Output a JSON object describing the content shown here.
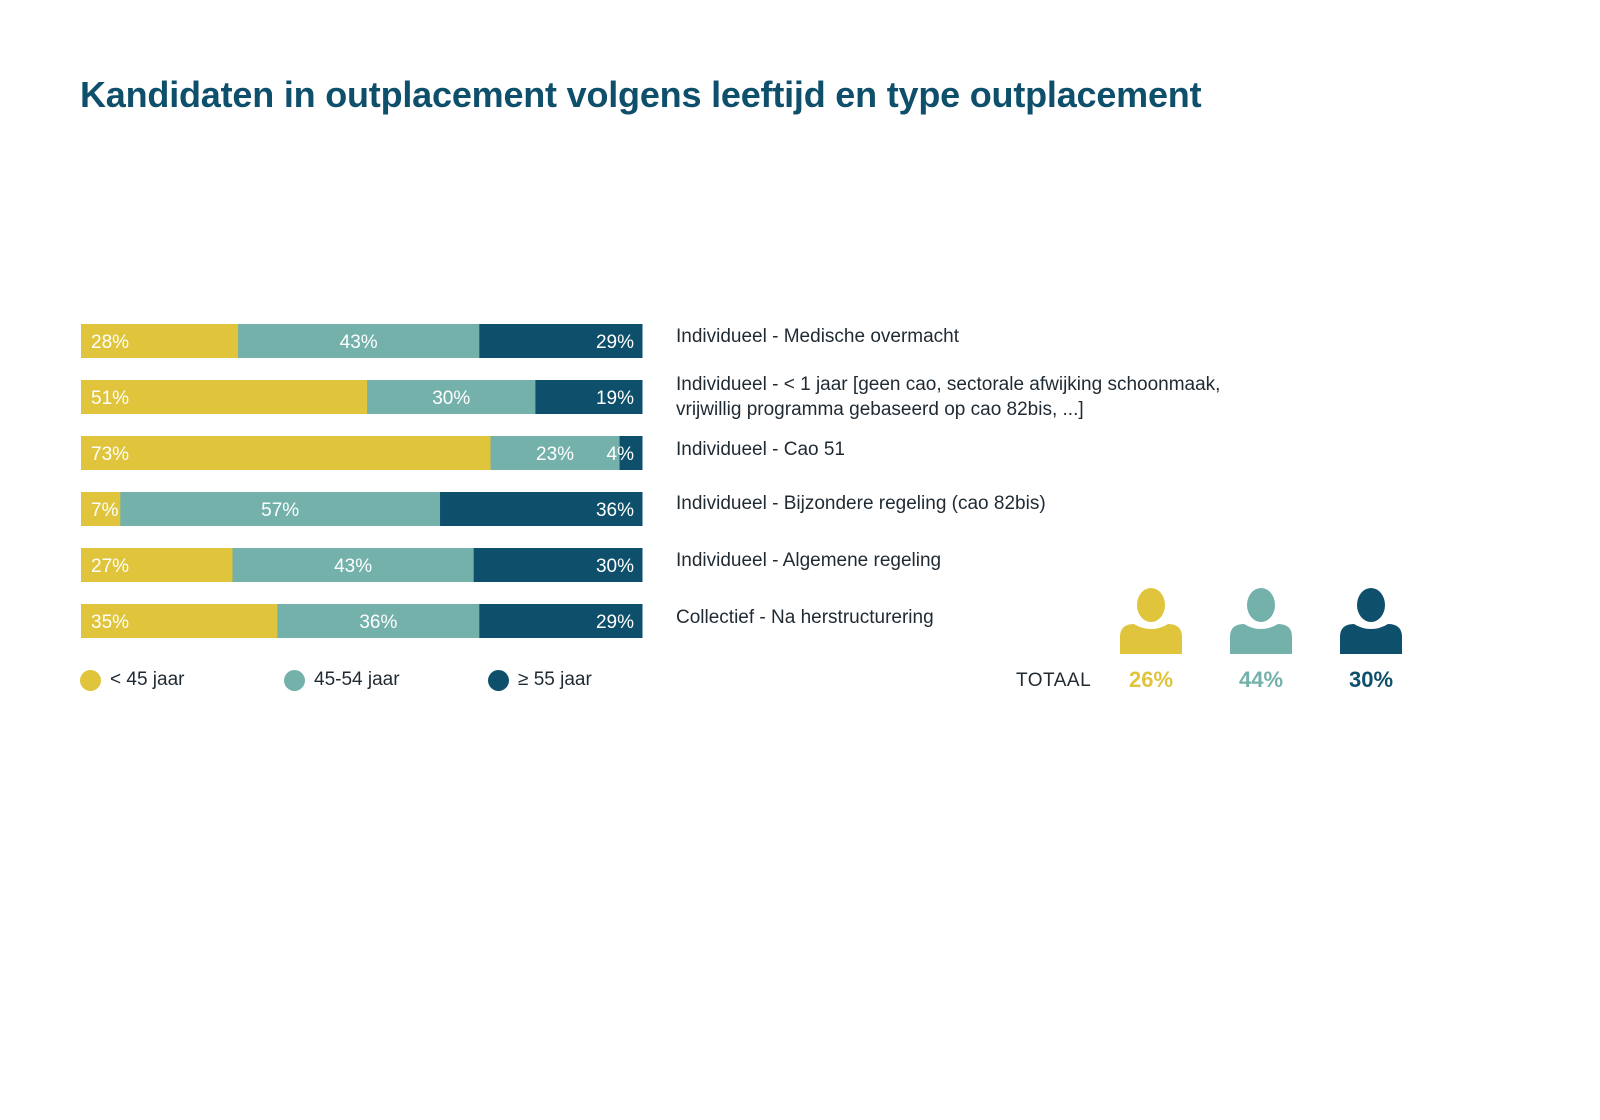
{
  "title": "Kandidaten in outplacement volgens leeftijd en type outplacement",
  "colors": {
    "under45": "#dfc43c",
    "age45_54": "#74b1ab",
    "over55": "#0e4f6b",
    "title": "#0e4f6b"
  },
  "chart_data": {
    "type": "bar",
    "orientation": "horizontal",
    "stacked": true,
    "value_unit": "%",
    "categories": [
      "Individueel - Medische overmacht",
      "Individueel - < 1 jaar [geen cao, sectorale afwijking schoonmaak, vrijwillig programma gebaseerd op cao 82bis, ...]",
      "Individueel - Cao 51",
      "Individueel - Bijzondere regeling (cao 82bis)",
      "Individueel - Algemene regeling",
      "Collectief - Na herstructurering"
    ],
    "series": [
      {
        "name": "< 45 jaar",
        "color": "#dfc43c",
        "values": [
          28,
          51,
          73,
          7,
          27,
          35
        ]
      },
      {
        "name": "45-54 jaar",
        "color": "#74b1ab",
        "values": [
          43,
          30,
          23,
          57,
          43,
          36
        ]
      },
      {
        "name": "≥ 55 jaar",
        "color": "#0e4f6b",
        "values": [
          29,
          19,
          4,
          36,
          30,
          29
        ]
      }
    ],
    "legend_position": "bottom-left",
    "grid": false
  },
  "category_labels": [
    {
      "line1": "Individueel - Medische overmacht"
    },
    {
      "line1": "Individueel - < 1 jaar [geen cao, sectorale afwijking schoonmaak,",
      "line2": "vrijwillig programma gebaseerd op cao 82bis, ...]"
    },
    {
      "line1": "Individueel - Cao 51"
    },
    {
      "line1": "Individueel - Bijzondere regeling (cao 82bis)"
    },
    {
      "line1": "Individueel - Algemene regeling"
    },
    {
      "line1": "Collectief - Na herstructurering"
    }
  ],
  "legend": {
    "items": [
      {
        "label": "< 45 jaar",
        "color": "#dfc43c"
      },
      {
        "label": "45-54 jaar",
        "color": "#74b1ab"
      },
      {
        "label": "≥ 55 jaar",
        "color": "#0e4f6b"
      }
    ]
  },
  "totals": {
    "label": "TOTAAL",
    "items": [
      {
        "value": "26%",
        "color": "#dfc43c",
        "icon": "person-icon"
      },
      {
        "value": "44%",
        "color": "#74b1ab",
        "icon": "person-icon"
      },
      {
        "value": "30%",
        "color": "#0e4f6b",
        "icon": "person-icon"
      }
    ]
  }
}
